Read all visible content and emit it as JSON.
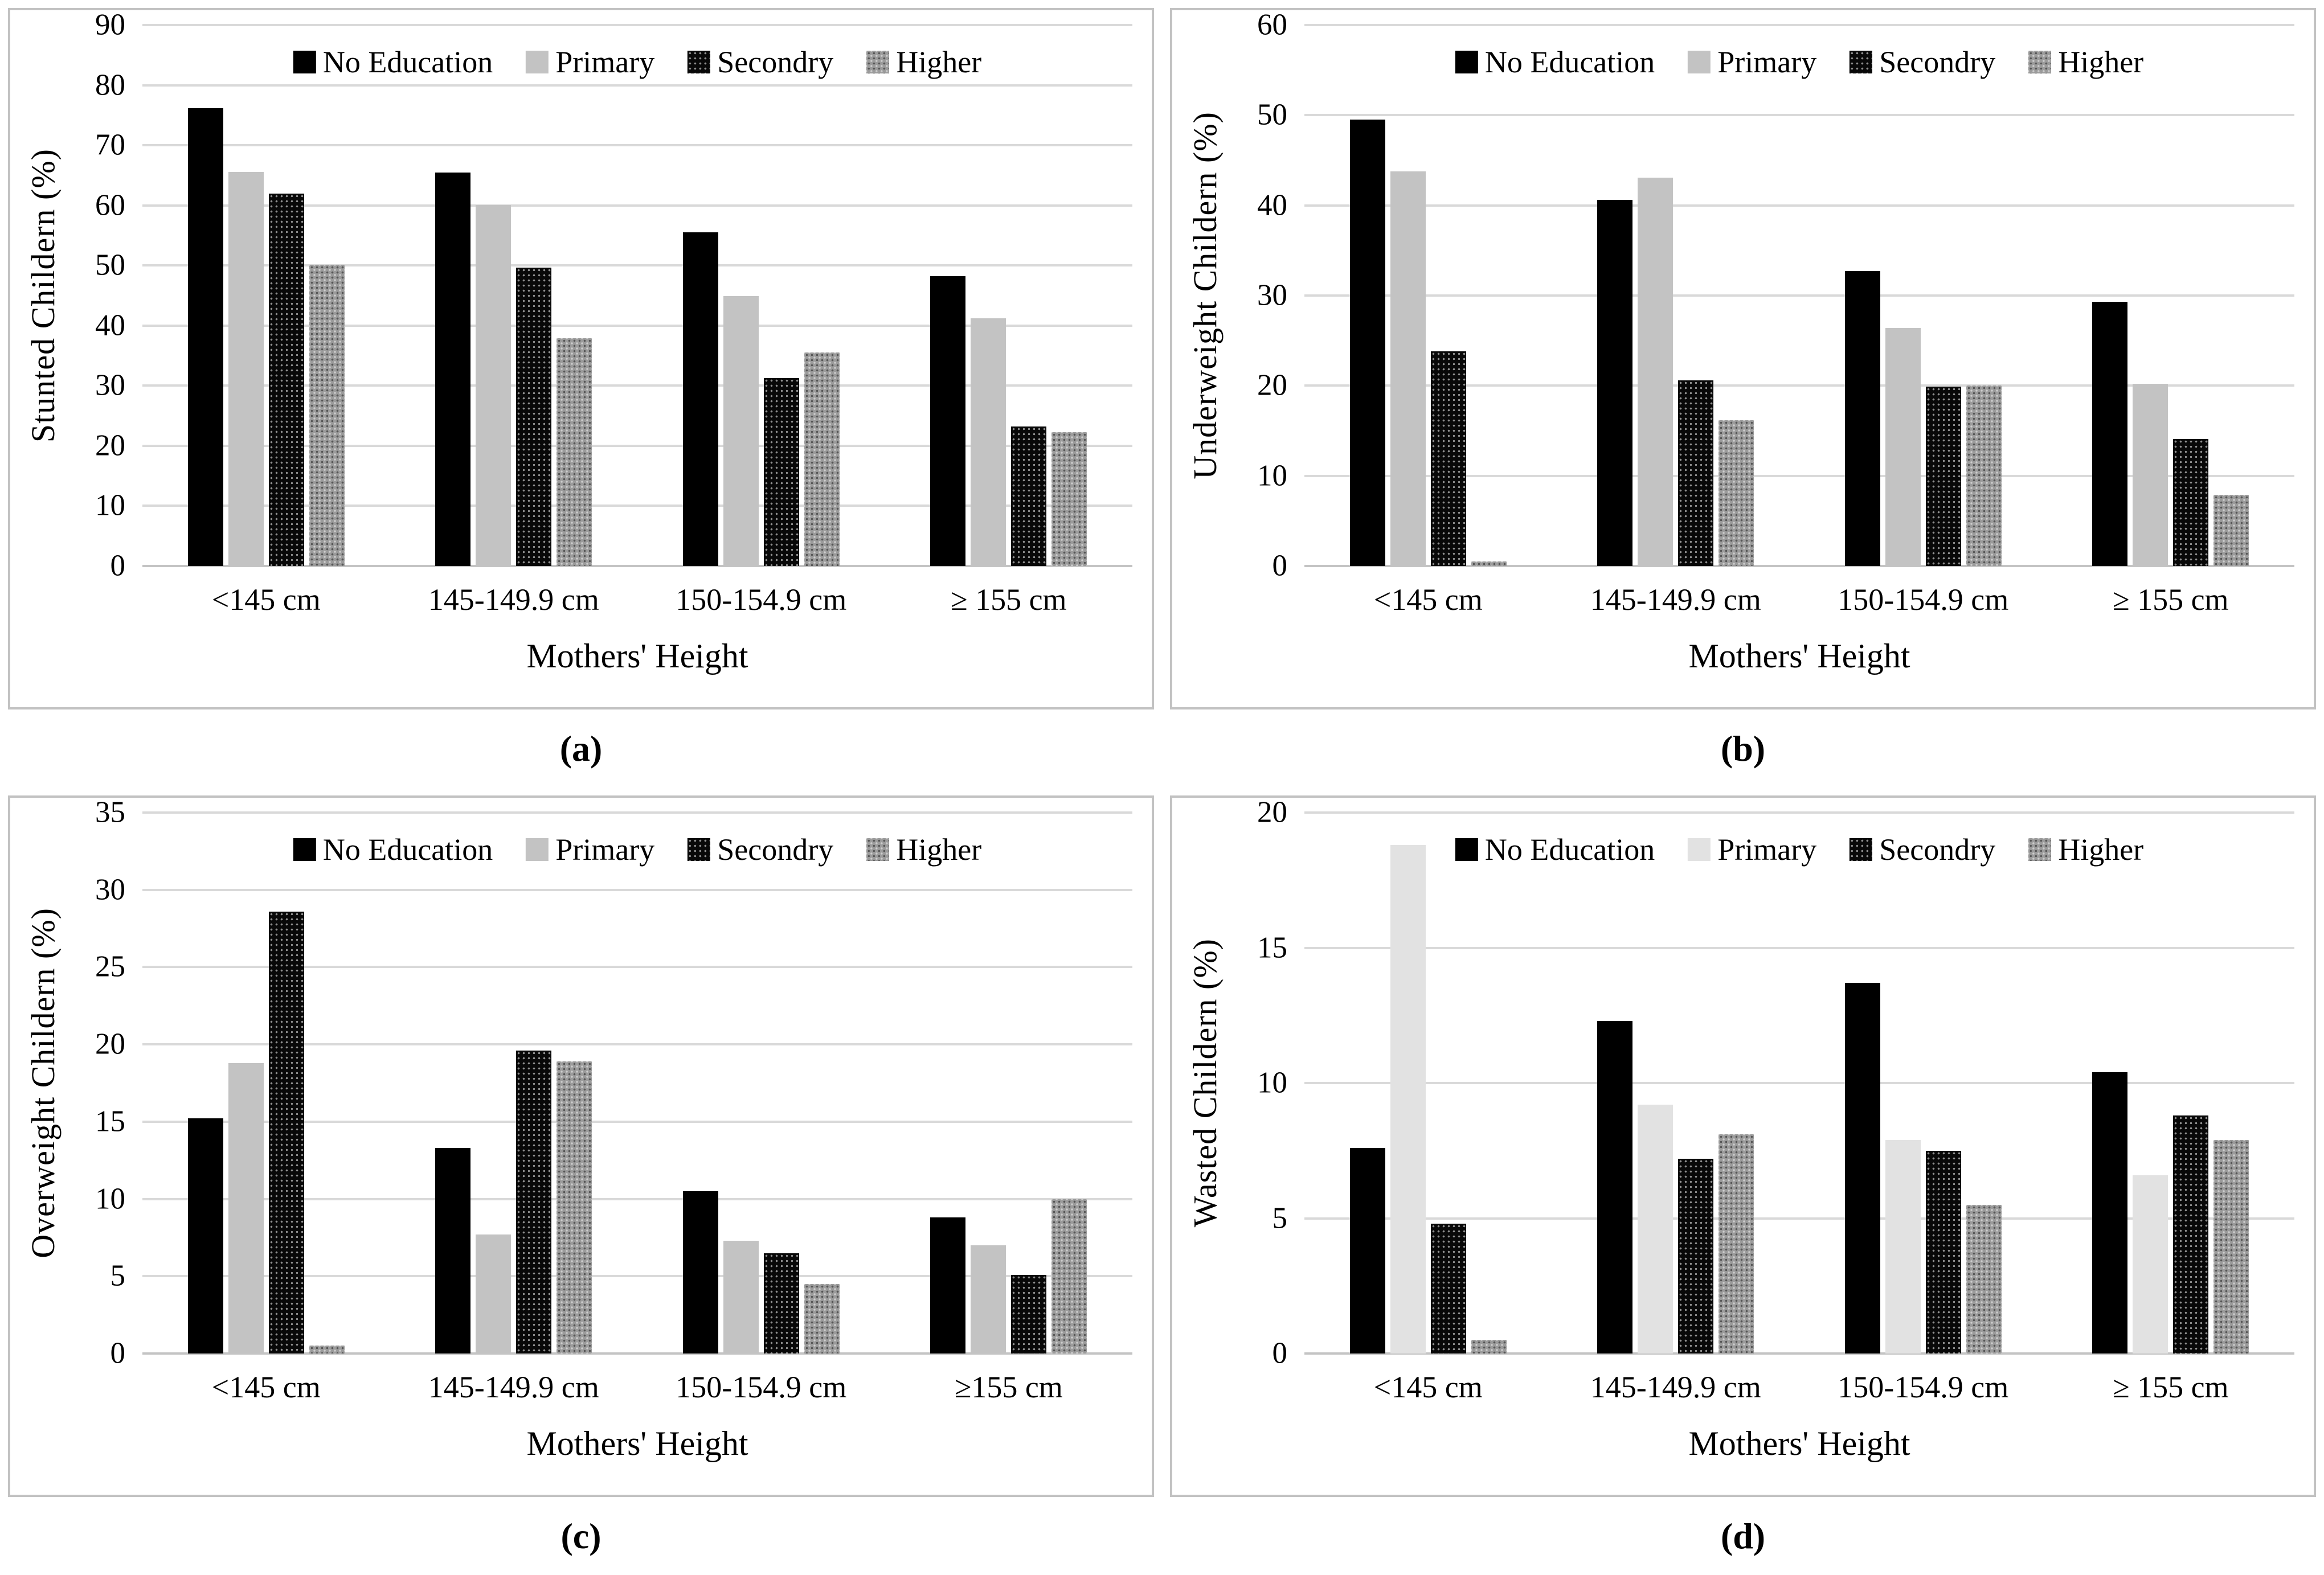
{
  "figure": {
    "x_title": "Mothers' Height",
    "legend_labels": [
      "No Education",
      "Primary",
      "Secondry",
      "Higher"
    ],
    "colors": {
      "no_education": "#000000",
      "primary": "#c3c3c3",
      "primary_panel_d": "#e2e2e2",
      "secondry_dotted_base": "#080808",
      "higher_dotted_base": "#9b9b9b",
      "gridline": "#d9d9d9",
      "panel_frame": "#c2c2c2"
    }
  },
  "chart_data": [
    {
      "type": "bar",
      "caption": "(a)",
      "ylabel": "Stunted Childern (%)",
      "xlabel": "Mothers' Height",
      "categories": [
        "<145 cm",
        "145-149.9 cm",
        "150-154.9 cm",
        "≥ 155 cm"
      ],
      "ylim": [
        0,
        90
      ],
      "ytick_step": 10,
      "grid": true,
      "legend_position": "top-center",
      "series": [
        {
          "name": "No Education",
          "fill": "solid-black",
          "values": [
            76.2,
            65.5,
            55.5,
            48.2
          ]
        },
        {
          "name": "Primary",
          "fill": "solid-lightgray",
          "values": [
            65.6,
            60.1,
            44.9,
            41.2
          ]
        },
        {
          "name": "Secondry",
          "fill": "dots-black",
          "values": [
            62.0,
            49.6,
            31.3,
            23.2
          ]
        },
        {
          "name": "Higher",
          "fill": "dots-gray",
          "values": [
            50.1,
            37.9,
            35.5,
            22.3
          ]
        }
      ]
    },
    {
      "type": "bar",
      "caption": "(b)",
      "ylabel": "Underweight Childern (%)",
      "xlabel": "Mothers' Height",
      "categories": [
        "<145 cm",
        "145-149.9 cm",
        "150-154.9 cm",
        "≥ 155 cm"
      ],
      "ylim": [
        0,
        60
      ],
      "ytick_step": 10,
      "grid": true,
      "legend_position": "top-center",
      "series": [
        {
          "name": "No Education",
          "fill": "solid-black",
          "values": [
            49.5,
            40.6,
            32.7,
            29.3
          ]
        },
        {
          "name": "Primary",
          "fill": "solid-lightgray",
          "values": [
            43.8,
            43.1,
            26.4,
            20.2
          ]
        },
        {
          "name": "Secondry",
          "fill": "dots-black",
          "values": [
            23.8,
            20.6,
            19.9,
            14.1
          ]
        },
        {
          "name": "Higher",
          "fill": "dots-gray",
          "values": [
            0.5,
            16.2,
            20.0,
            7.9
          ]
        }
      ]
    },
    {
      "type": "bar",
      "caption": "(c)",
      "ylabel": "Overweight Childern (%)",
      "xlabel": "Mothers' Height",
      "categories": [
        "<145 cm",
        "145-149.9 cm",
        "150-154.9 cm",
        "≥155 cm"
      ],
      "ylim": [
        0,
        35
      ],
      "ytick_step": 5,
      "grid": true,
      "legend_position": "top-center",
      "series": [
        {
          "name": "No Education",
          "fill": "solid-black",
          "values": [
            15.2,
            13.3,
            10.5,
            8.8
          ]
        },
        {
          "name": "Primary",
          "fill": "solid-lightgray",
          "values": [
            18.8,
            7.7,
            7.3,
            7.0
          ]
        },
        {
          "name": "Secondry",
          "fill": "dots-black",
          "values": [
            28.6,
            19.6,
            6.5,
            5.1
          ]
        },
        {
          "name": "Higher",
          "fill": "dots-gray",
          "values": [
            0.5,
            18.9,
            4.5,
            10.0
          ]
        }
      ]
    },
    {
      "type": "bar",
      "caption": "(d)",
      "ylabel": "Wasted Childern (%)",
      "xlabel": "Mothers' Height",
      "categories": [
        "<145 cm",
        "145-149.9 cm",
        "150-154.9 cm",
        "≥ 155 cm"
      ],
      "ylim": [
        0,
        20
      ],
      "ytick_step": 5,
      "grid": true,
      "legend_position": "top-center",
      "series": [
        {
          "name": "No Education",
          "fill": "solid-black",
          "values": [
            7.6,
            12.3,
            13.7,
            10.4
          ]
        },
        {
          "name": "Primary",
          "fill": "solid-verylightgray",
          "values": [
            18.8,
            9.2,
            7.9,
            6.6
          ]
        },
        {
          "name": "Secondry",
          "fill": "dots-black",
          "values": [
            4.8,
            7.2,
            7.5,
            8.8
          ]
        },
        {
          "name": "Higher",
          "fill": "dots-gray",
          "values": [
            0.5,
            8.1,
            5.5,
            7.9
          ]
        }
      ]
    }
  ]
}
